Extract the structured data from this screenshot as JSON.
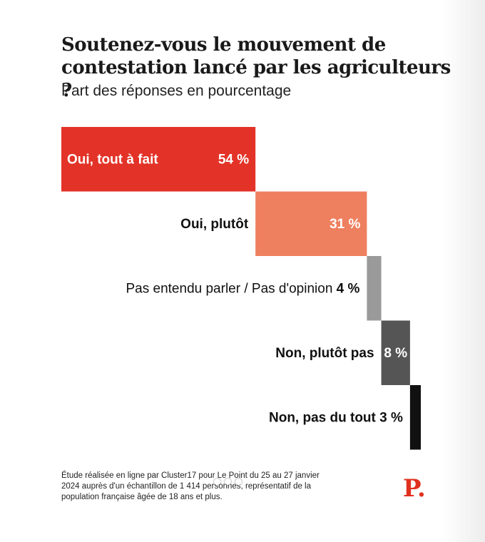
{
  "header": {
    "title": "Soutenez-vous le mouvement de contestation lancé par les agriculteurs ?",
    "subtitle": "Part des réponses en pourcentage"
  },
  "chart_data": {
    "type": "bar",
    "title": "Soutenez-vous le mouvement de contestation lancé par les agriculteurs ?",
    "subtitle": "Part des réponses en pourcentage",
    "categories": [
      "Oui, tout à fait",
      "Oui, plutôt",
      "Pas entendu parler / Pas d'opinion",
      "Non, plutôt pas",
      "Non, pas du tout"
    ],
    "values": [
      54,
      31,
      4,
      8,
      3
    ],
    "value_labels": [
      "54 %",
      "31 %",
      "4 %",
      "8 %",
      "3 %"
    ],
    "colors": [
      "#e33227",
      "#ee8060",
      "#9a9a9a",
      "#555555",
      "#111111"
    ],
    "layout": "waterfall-cumulative",
    "unit": "%"
  },
  "footer": {
    "source": "Étude réalisée en ligne par Cluster17 pour Le Point du 25 au 27 janvier 2024 auprès d'un échantillon de 1 414 personnes, représentatif de la population française âgée de 18 ans et plus.",
    "logo_text": "P."
  }
}
